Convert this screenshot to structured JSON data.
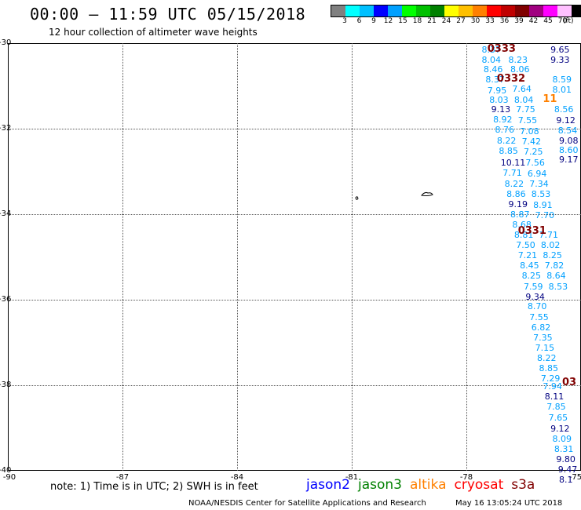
{
  "title": "00:00 – 11:59 UTC 05/15/2018",
  "subtitle": "12 hour collection of altimeter wave heights",
  "legend": {
    "colors": [
      "#808080",
      "#00ffff",
      "#00c0ff",
      "#0000ff",
      "#00a0ff",
      "#00ff00",
      "#00c000",
      "#008000",
      "#ffff00",
      "#ffc000",
      "#ff8000",
      "#ff0000",
      "#c00000",
      "#800000",
      "#a00080",
      "#ff00ff",
      "#ffc0ff",
      "#000000"
    ],
    "ticks": [
      "3",
      "6",
      "9",
      "12",
      "15",
      "18",
      "21",
      "24",
      "27",
      "30",
      "33",
      "36",
      "39",
      "42",
      "45",
      "70"
    ],
    "unit": "(ft)"
  },
  "map": {
    "lat_labels": [
      "-30",
      "-32",
      "-34",
      "-36",
      "-38",
      "-40"
    ],
    "lon_labels": [
      "-90",
      "-87",
      "-84",
      "-81",
      "-78",
      "-75"
    ]
  },
  "observations": [
    {
      "v": "8.37",
      "lon": -77.6,
      "lat": -30.15,
      "c": "#00a0ff"
    },
    {
      "v": "8.04",
      "lon": -77.6,
      "lat": -30.38,
      "c": "#00a0ff"
    },
    {
      "v": "8.46",
      "lon": -77.55,
      "lat": -30.6,
      "c": "#00a0ff"
    },
    {
      "v": "8.37",
      "lon": -77.5,
      "lat": -30.85,
      "c": "#00a0ff"
    },
    {
      "v": "7.95",
      "lon": -77.45,
      "lat": -31.1,
      "c": "#00a0ff"
    },
    {
      "v": "8.03",
      "lon": -77.4,
      "lat": -31.32,
      "c": "#00a0ff"
    },
    {
      "v": "9.13",
      "lon": -77.35,
      "lat": -31.55,
      "c": "#000080"
    },
    {
      "v": "8.92",
      "lon": -77.3,
      "lat": -31.78,
      "c": "#00a0ff"
    },
    {
      "v": "8.76",
      "lon": -77.25,
      "lat": -32.02,
      "c": "#00a0ff"
    },
    {
      "v": "8.22",
      "lon": -77.2,
      "lat": -32.27,
      "c": "#00a0ff"
    },
    {
      "v": "8.85",
      "lon": -77.15,
      "lat": -32.52,
      "c": "#00a0ff"
    },
    {
      "v": "10.11",
      "lon": -77.1,
      "lat": -32.78,
      "c": "#000080"
    },
    {
      "v": "7.71",
      "lon": -77.05,
      "lat": -33.03,
      "c": "#00a0ff"
    },
    {
      "v": "8.22",
      "lon": -77.0,
      "lat": -33.28,
      "c": "#00a0ff"
    },
    {
      "v": "8.86",
      "lon": -76.95,
      "lat": -33.52,
      "c": "#00a0ff"
    },
    {
      "v": "9.19",
      "lon": -76.9,
      "lat": -33.77,
      "c": "#000080"
    },
    {
      "v": "8.87",
      "lon": -76.85,
      "lat": -34.0,
      "c": "#00a0ff"
    },
    {
      "v": "8.68",
      "lon": -76.8,
      "lat": -34.24,
      "c": "#00a0ff"
    },
    {
      "v": "8.81",
      "lon": -76.75,
      "lat": -34.48,
      "c": "#00a0ff"
    },
    {
      "v": "7.50",
      "lon": -76.7,
      "lat": -34.72,
      "c": "#00a0ff"
    },
    {
      "v": "7.21",
      "lon": -76.65,
      "lat": -34.96,
      "c": "#00a0ff"
    },
    {
      "v": "8.45",
      "lon": -76.6,
      "lat": -35.2,
      "c": "#00a0ff"
    },
    {
      "v": "8.25",
      "lon": -76.55,
      "lat": -35.44,
      "c": "#00a0ff"
    },
    {
      "v": "7.59",
      "lon": -76.5,
      "lat": -35.68,
      "c": "#00a0ff"
    },
    {
      "v": "9.34",
      "lon": -76.45,
      "lat": -35.92,
      "c": "#000080"
    },
    {
      "v": "8.70",
      "lon": -76.4,
      "lat": -36.15,
      "c": "#00a0ff"
    },
    {
      "v": "7.55",
      "lon": -76.35,
      "lat": -36.4,
      "c": "#00a0ff"
    },
    {
      "v": "6.82",
      "lon": -76.3,
      "lat": -36.64,
      "c": "#00a0ff"
    },
    {
      "v": "7.35",
      "lon": -76.25,
      "lat": -36.88,
      "c": "#00a0ff"
    },
    {
      "v": "7.15",
      "lon": -76.2,
      "lat": -37.12,
      "c": "#00a0ff"
    },
    {
      "v": "8.22",
      "lon": -76.15,
      "lat": -37.36,
      "c": "#00a0ff"
    },
    {
      "v": "8.85",
      "lon": -76.1,
      "lat": -37.6,
      "c": "#00a0ff"
    },
    {
      "v": "7.29",
      "lon": -76.05,
      "lat": -37.84,
      "c": "#00a0ff"
    },
    {
      "v": "7.94",
      "lon": -76.0,
      "lat": -38.02,
      "c": "#00a0ff"
    },
    {
      "v": "8.11",
      "lon": -75.95,
      "lat": -38.26,
      "c": "#000080"
    },
    {
      "v": "7.85",
      "lon": -75.9,
      "lat": -38.5,
      "c": "#00a0ff"
    },
    {
      "v": "7.65",
      "lon": -75.85,
      "lat": -38.75,
      "c": "#00a0ff"
    },
    {
      "v": "9.12",
      "lon": -75.8,
      "lat": -39.0,
      "c": "#000080"
    },
    {
      "v": "8.09",
      "lon": -75.75,
      "lat": -39.24,
      "c": "#00a0ff"
    },
    {
      "v": "8.31",
      "lon": -75.7,
      "lat": -39.48,
      "c": "#00a0ff"
    },
    {
      "v": "9.80",
      "lon": -75.65,
      "lat": -39.72,
      "c": "#000080"
    },
    {
      "v": "9.47",
      "lon": -75.6,
      "lat": -39.96,
      "c": "#000080"
    },
    {
      "v": "8.1",
      "lon": -75.55,
      "lat": -40.2,
      "c": "#000080"
    },
    {
      "v": "8.23",
      "lon": -76.9,
      "lat": -30.38,
      "c": "#00a0ff"
    },
    {
      "v": "8.06",
      "lon": -76.85,
      "lat": -30.6,
      "c": "#00a0ff"
    },
    {
      "v": "7.64",
      "lon": -76.8,
      "lat": -31.07,
      "c": "#00a0ff"
    },
    {
      "v": "8.04",
      "lon": -76.75,
      "lat": -31.32,
      "c": "#00a0ff"
    },
    {
      "v": "7.75",
      "lon": -76.7,
      "lat": -31.55,
      "c": "#00a0ff"
    },
    {
      "v": "7.55",
      "lon": -76.65,
      "lat": -31.8,
      "c": "#00a0ff"
    },
    {
      "v": "7.08",
      "lon": -76.6,
      "lat": -32.05,
      "c": "#00a0ff"
    },
    {
      "v": "7.42",
      "lon": -76.55,
      "lat": -32.3,
      "c": "#00a0ff"
    },
    {
      "v": "7.25",
      "lon": -76.5,
      "lat": -32.54,
      "c": "#00a0ff"
    },
    {
      "v": "7.56",
      "lon": -76.45,
      "lat": -32.79,
      "c": "#00a0ff"
    },
    {
      "v": "6.94",
      "lon": -76.4,
      "lat": -33.04,
      "c": "#00a0ff"
    },
    {
      "v": "7.34",
      "lon": -76.35,
      "lat": -33.29,
      "c": "#00a0ff"
    },
    {
      "v": "8.53",
      "lon": -76.3,
      "lat": -33.53,
      "c": "#00a0ff"
    },
    {
      "v": "8.91",
      "lon": -76.25,
      "lat": -33.78,
      "c": "#00a0ff"
    },
    {
      "v": "7.70",
      "lon": -76.2,
      "lat": -34.02,
      "c": "#00a0ff"
    },
    {
      "v": "7.71",
      "lon": -76.1,
      "lat": -34.48,
      "c": "#00a0ff"
    },
    {
      "v": "8.02",
      "lon": -76.05,
      "lat": -34.72,
      "c": "#00a0ff"
    },
    {
      "v": "8.25",
      "lon": -76.0,
      "lat": -34.96,
      "c": "#00a0ff"
    },
    {
      "v": "7.82",
      "lon": -75.95,
      "lat": -35.2,
      "c": "#00a0ff"
    },
    {
      "v": "8.64",
      "lon": -75.9,
      "lat": -35.44,
      "c": "#00a0ff"
    },
    {
      "v": "8.53",
      "lon": -75.85,
      "lat": -35.68,
      "c": "#00a0ff"
    },
    {
      "v": "9.65",
      "lon": -75.8,
      "lat": -30.15,
      "c": "#000080"
    },
    {
      "v": "9.33",
      "lon": -75.8,
      "lat": -30.38,
      "c": "#000080"
    },
    {
      "v": "8.59",
      "lon": -75.75,
      "lat": -30.85,
      "c": "#00a0ff"
    },
    {
      "v": "8.01",
      "lon": -75.75,
      "lat": -31.08,
      "c": "#00a0ff"
    },
    {
      "v": "8.56",
      "lon": -75.7,
      "lat": -31.55,
      "c": "#00a0ff"
    },
    {
      "v": "9.12",
      "lon": -75.65,
      "lat": -31.8,
      "c": "#000080"
    },
    {
      "v": "8.54",
      "lon": -75.6,
      "lat": -32.03,
      "c": "#00a0ff"
    },
    {
      "v": "9.08",
      "lon": -75.55,
      "lat": -32.27,
      "c": "#000080"
    },
    {
      "v": "8.60",
      "lon": -75.5,
      "lat": -32.5,
      "c": "#00a0ff"
    },
    {
      "v": "9.17",
      "lon": -75.45,
      "lat": -32.72,
      "c": "#000080"
    }
  ],
  "passes": [
    {
      "v": "0333",
      "lon": -77.45,
      "lat": -30.12,
      "c": "#800000"
    },
    {
      "v": "0332",
      "lon": -77.2,
      "lat": -30.82,
      "c": "#800000"
    },
    {
      "v": "0331",
      "lon": -76.65,
      "lat": -34.38,
      "c": "#800000"
    },
    {
      "v": "11",
      "lon": -76.0,
      "lat": -31.3,
      "c": "#ff8000"
    },
    {
      "v": "03",
      "lon": -75.3,
      "lat": -37.93,
      "c": "#800000"
    }
  ],
  "note": "note:  1) Time is in UTC;  2) SWH is in feet",
  "satellites": [
    {
      "name": "jason2",
      "color": "#0000ff"
    },
    {
      "name": "jason3",
      "color": "#008000"
    },
    {
      "name": "altika",
      "color": "#ff8000"
    },
    {
      "name": "cryosat",
      "color": "#ff0000"
    },
    {
      "name": "s3a",
      "color": "#800000"
    }
  ],
  "credit": "NOAA/NESDIS Center for Satellite Applications and Research",
  "timestamp": "May 16 13:05:24 UTC 2018"
}
